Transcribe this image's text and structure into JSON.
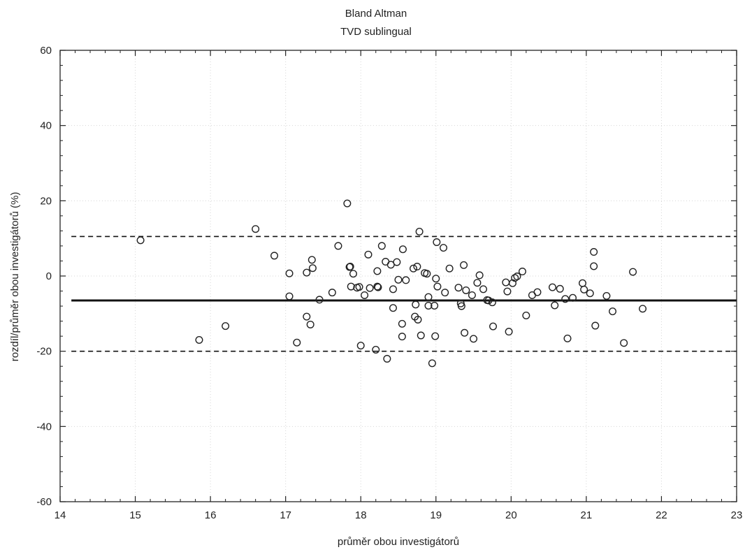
{
  "chart_data": {
    "type": "scatter",
    "title": "Bland Altman",
    "subtitle": "TVD sublingual",
    "xlabel": "průměr obou investigátorů",
    "ylabel": "rozdíl/průměr obou investigátorů (%)",
    "xlim": [
      14,
      23
    ],
    "ylim": [
      -60,
      60
    ],
    "xticks": [
      14,
      15,
      16,
      17,
      18,
      19,
      20,
      21,
      22,
      23
    ],
    "yticks": [
      -60,
      -40,
      -20,
      0,
      20,
      40,
      60
    ],
    "xtick_labels": [
      "14",
      "15",
      "16",
      "17",
      "18",
      "19",
      "20",
      "21",
      "22",
      "23"
    ],
    "ytick_labels": [
      "-60",
      "-40",
      "-20",
      "0",
      "20",
      "40",
      "60"
    ],
    "grid": true,
    "marker": "open-circle",
    "reference_lines": [
      {
        "y": 10.5,
        "style": "dashed"
      },
      {
        "y": -6.5,
        "style": "solid"
      },
      {
        "y": -20.0,
        "style": "dashed"
      }
    ],
    "reference_line_xrange": [
      14.15,
      23
    ],
    "points": [
      [
        15.07,
        9.5
      ],
      [
        15.85,
        -17
      ],
      [
        16.2,
        -13.3
      ],
      [
        16.6,
        12.5
      ],
      [
        16.85,
        5.4
      ],
      [
        17.05,
        0.7
      ],
      [
        17.05,
        -5.4
      ],
      [
        17.15,
        -17.7
      ],
      [
        17.28,
        0.9
      ],
      [
        17.28,
        -10.8
      ],
      [
        17.33,
        -12.9
      ],
      [
        17.35,
        4.3
      ],
      [
        17.36,
        2.1
      ],
      [
        17.45,
        -6.3
      ],
      [
        17.62,
        -4.4
      ],
      [
        17.7,
        8.0
      ],
      [
        17.82,
        19.3
      ],
      [
        17.85,
        2.4
      ],
      [
        17.86,
        2.5
      ],
      [
        17.87,
        -2.8
      ],
      [
        17.9,
        0.6
      ],
      [
        17.95,
        -3.1
      ],
      [
        17.98,
        -2.9
      ],
      [
        18.0,
        -18.5
      ],
      [
        18.05,
        -5.1
      ],
      [
        18.1,
        5.7
      ],
      [
        18.12,
        -3.2
      ],
      [
        18.2,
        -19.6
      ],
      [
        18.22,
        1.3
      ],
      [
        18.22,
        -2.8
      ],
      [
        18.23,
        -3.0
      ],
      [
        18.28,
        8.0
      ],
      [
        18.33,
        3.8
      ],
      [
        18.35,
        -22.0
      ],
      [
        18.4,
        3.0
      ],
      [
        18.43,
        -8.5
      ],
      [
        18.43,
        -3.5
      ],
      [
        18.48,
        3.7
      ],
      [
        18.5,
        -1.0
      ],
      [
        18.55,
        -16.1
      ],
      [
        18.55,
        -12.7
      ],
      [
        18.56,
        7.1
      ],
      [
        18.6,
        -1.1
      ],
      [
        18.7,
        2.0
      ],
      [
        18.72,
        -10.8
      ],
      [
        18.73,
        -7.6
      ],
      [
        18.75,
        2.5
      ],
      [
        18.76,
        -11.6
      ],
      [
        18.78,
        11.8
      ],
      [
        18.8,
        -15.8
      ],
      [
        18.85,
        0.8
      ],
      [
        18.88,
        0.6
      ],
      [
        18.9,
        -5.6
      ],
      [
        18.9,
        -7.9
      ],
      [
        18.95,
        -23.2
      ],
      [
        18.98,
        -7.9
      ],
      [
        18.99,
        -16.0
      ],
      [
        19.0,
        -0.7
      ],
      [
        19.01,
        9.0
      ],
      [
        19.02,
        -2.8
      ],
      [
        19.1,
        7.5
      ],
      [
        19.12,
        -4.4
      ],
      [
        19.18,
        2.0
      ],
      [
        19.3,
        -3.1
      ],
      [
        19.33,
        -7.3
      ],
      [
        19.34,
        -8.0
      ],
      [
        19.37,
        2.9
      ],
      [
        19.38,
        -15.1
      ],
      [
        19.4,
        -3.8
      ],
      [
        19.48,
        -5.1
      ],
      [
        19.5,
        -16.7
      ],
      [
        19.55,
        -1.8
      ],
      [
        19.58,
        0.2
      ],
      [
        19.63,
        -3.5
      ],
      [
        19.68,
        -6.4
      ],
      [
        19.7,
        -6.5
      ],
      [
        19.75,
        -7.0
      ],
      [
        19.76,
        -13.4
      ],
      [
        19.93,
        -1.7
      ],
      [
        19.95,
        -4.1
      ],
      [
        19.97,
        -14.8
      ],
      [
        20.02,
        -1.9
      ],
      [
        20.05,
        -0.5
      ],
      [
        20.08,
        -0.1
      ],
      [
        20.15,
        1.2
      ],
      [
        20.2,
        -10.5
      ],
      [
        20.28,
        -5.1
      ],
      [
        20.35,
        -4.3
      ],
      [
        20.55,
        -3.0
      ],
      [
        20.58,
        -7.8
      ],
      [
        20.65,
        -3.4
      ],
      [
        20.72,
        -6.1
      ],
      [
        20.75,
        -16.6
      ],
      [
        20.82,
        -5.8
      ],
      [
        20.95,
        -1.9
      ],
      [
        20.97,
        -3.6
      ],
      [
        21.05,
        -4.6
      ],
      [
        21.1,
        2.6
      ],
      [
        21.1,
        6.4
      ],
      [
        21.12,
        -13.2
      ],
      [
        21.27,
        -5.3
      ],
      [
        21.35,
        -9.4
      ],
      [
        21.5,
        -17.8
      ],
      [
        21.62,
        1.1
      ],
      [
        21.75,
        -8.7
      ]
    ]
  }
}
